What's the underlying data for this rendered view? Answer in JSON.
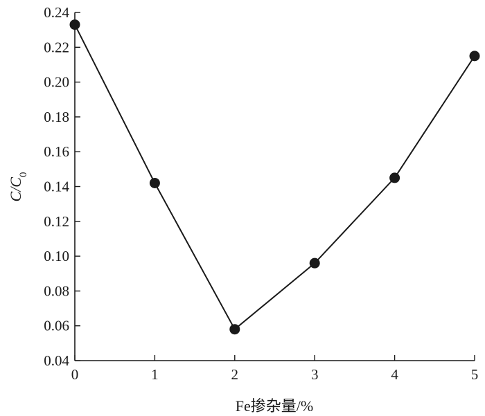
{
  "chart_data": {
    "type": "line",
    "title": "",
    "xlabel": "Fe掺杂量/%",
    "ylabel": "C/C0",
    "xlim": [
      0,
      5
    ],
    "ylim": [
      0.04,
      0.24
    ],
    "grid": false,
    "x_ticks": [
      "0",
      "1",
      "2",
      "3",
      "4",
      "5"
    ],
    "y_ticks": [
      "0.04",
      "0.06",
      "0.08",
      "0.10",
      "0.12",
      "0.14",
      "0.16",
      "0.18",
      "0.20",
      "0.22",
      "0.24"
    ],
    "series": [
      {
        "x": [
          0,
          1,
          2,
          3,
          4,
          5
        ],
        "values": [
          0.233,
          0.142,
          0.058,
          0.096,
          0.145,
          0.215
        ]
      }
    ],
    "colors": {
      "line": "#1a1a1a",
      "marker": "#1a1a1a"
    }
  }
}
